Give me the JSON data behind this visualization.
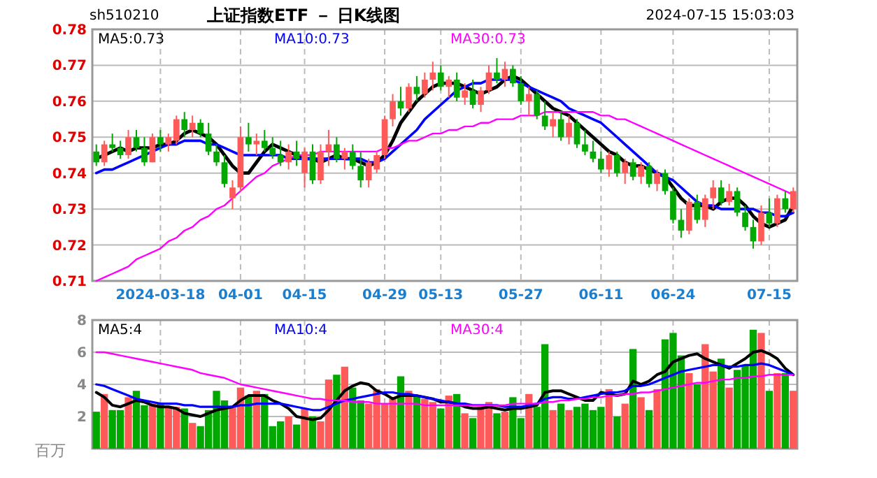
{
  "chart_data": [
    {
      "type": "candlestick",
      "title": "上证指数ETF － 日K线图",
      "subtitle": "sh510210",
      "annotations": [
        "2024-07-15 15:03:03"
      ],
      "categories": [
        null,
        null,
        null,
        null,
        null,
        null,
        null,
        null,
        "2024-03-18",
        null,
        null,
        null,
        null,
        null,
        null,
        null,
        null,
        null,
        "04-01",
        null,
        null,
        null,
        null,
        null,
        null,
        null,
        "04-15",
        null,
        null,
        null,
        null,
        null,
        null,
        null,
        null,
        null,
        "04-29",
        null,
        null,
        null,
        null,
        null,
        null,
        "05-13",
        null,
        null,
        null,
        null,
        null,
        null,
        null,
        null,
        null,
        "05-27",
        null,
        null,
        null,
        null,
        null,
        null,
        null,
        null,
        null,
        "06-11",
        null,
        null,
        null,
        null,
        null,
        null,
        null,
        null,
        "06-24",
        null,
        null,
        null,
        null,
        null,
        null,
        null,
        null,
        null,
        null,
        null,
        "07-15",
        null,
        null,
        null
      ],
      "ohlc": [
        [
          0.746,
          0.748,
          0.742,
          0.743
        ],
        [
          0.743,
          0.749,
          0.742,
          0.748
        ],
        [
          0.748,
          0.751,
          0.746,
          0.747
        ],
        [
          0.747,
          0.749,
          0.744,
          0.745
        ],
        [
          0.745,
          0.752,
          0.744,
          0.75
        ],
        [
          0.75,
          0.752,
          0.746,
          0.747
        ],
        [
          0.747,
          0.75,
          0.742,
          0.743
        ],
        [
          0.743,
          0.751,
          0.743,
          0.75
        ],
        [
          0.75,
          0.752,
          0.746,
          0.748
        ],
        [
          0.748,
          0.751,
          0.746,
          0.75
        ],
        [
          0.749,
          0.756,
          0.748,
          0.755
        ],
        [
          0.755,
          0.757,
          0.75,
          0.752
        ],
        [
          0.752,
          0.756,
          0.75,
          0.754
        ],
        [
          0.754,
          0.755,
          0.75,
          0.751
        ],
        [
          0.751,
          0.754,
          0.745,
          0.746
        ],
        [
          0.746,
          0.748,
          0.742,
          0.743
        ],
        [
          0.743,
          0.745,
          0.736,
          0.737
        ],
        [
          0.733,
          0.738,
          0.73,
          0.736
        ],
        [
          0.736,
          0.753,
          0.735,
          0.75
        ],
        [
          0.75,
          0.754,
          0.746,
          0.748
        ],
        [
          0.748,
          0.751,
          0.745,
          0.749
        ],
        [
          0.749,
          0.752,
          0.746,
          0.747
        ],
        [
          0.747,
          0.75,
          0.744,
          0.745
        ],
        [
          0.745,
          0.749,
          0.742,
          0.743
        ],
        [
          0.743,
          0.748,
          0.741,
          0.746
        ],
        [
          0.746,
          0.749,
          0.742,
          0.744
        ],
        [
          0.74,
          0.747,
          0.736,
          0.746
        ],
        [
          0.746,
          0.748,
          0.737,
          0.738
        ],
        [
          0.738,
          0.748,
          0.737,
          0.746
        ],
        [
          0.746,
          0.752,
          0.742,
          0.748
        ],
        [
          0.748,
          0.75,
          0.743,
          0.744
        ],
        [
          0.744,
          0.747,
          0.741,
          0.746
        ],
        [
          0.746,
          0.748,
          0.741,
          0.742
        ],
        [
          0.742,
          0.746,
          0.736,
          0.738
        ],
        [
          0.738,
          0.744,
          0.736,
          0.743
        ],
        [
          0.741,
          0.746,
          0.74,
          0.745
        ],
        [
          0.745,
          0.756,
          0.744,
          0.755
        ],
        [
          0.755,
          0.762,
          0.753,
          0.76
        ],
        [
          0.76,
          0.764,
          0.756,
          0.758
        ],
        [
          0.758,
          0.765,
          0.757,
          0.764
        ],
        [
          0.764,
          0.767,
          0.76,
          0.762
        ],
        [
          0.762,
          0.768,
          0.761,
          0.766
        ],
        [
          0.766,
          0.771,
          0.763,
          0.768
        ],
        [
          0.768,
          0.77,
          0.763,
          0.764
        ],
        [
          0.764,
          0.767,
          0.761,
          0.766
        ],
        [
          0.766,
          0.768,
          0.76,
          0.761
        ],
        [
          0.761,
          0.765,
          0.759,
          0.763
        ],
        [
          0.763,
          0.766,
          0.758,
          0.759
        ],
        [
          0.759,
          0.764,
          0.757,
          0.763
        ],
        [
          0.763,
          0.77,
          0.762,
          0.768
        ],
        [
          0.768,
          0.772,
          0.765,
          0.766
        ],
        [
          0.766,
          0.771,
          0.764,
          0.769
        ],
        [
          0.769,
          0.77,
          0.764,
          0.765
        ],
        [
          0.765,
          0.767,
          0.759,
          0.76
        ],
        [
          0.76,
          0.764,
          0.756,
          0.762
        ],
        [
          0.762,
          0.763,
          0.755,
          0.756
        ],
        [
          0.756,
          0.76,
          0.752,
          0.753
        ],
        [
          0.753,
          0.757,
          0.75,
          0.755
        ],
        [
          0.755,
          0.757,
          0.749,
          0.75
        ],
        [
          0.75,
          0.756,
          0.748,
          0.754
        ],
        [
          0.754,
          0.755,
          0.747,
          0.748
        ],
        [
          0.748,
          0.752,
          0.745,
          0.746
        ],
        [
          0.746,
          0.749,
          0.743,
          0.744
        ],
        [
          0.744,
          0.746,
          0.74,
          0.741
        ],
        [
          0.741,
          0.746,
          0.739,
          0.745
        ],
        [
          0.745,
          0.746,
          0.739,
          0.74
        ],
        [
          0.74,
          0.744,
          0.737,
          0.743
        ],
        [
          0.743,
          0.744,
          0.738,
          0.739
        ],
        [
          0.739,
          0.743,
          0.737,
          0.742
        ],
        [
          0.742,
          0.743,
          0.736,
          0.737
        ],
        [
          0.737,
          0.741,
          0.735,
          0.74
        ],
        [
          0.74,
          0.741,
          0.734,
          0.735
        ],
        [
          0.735,
          0.736,
          0.726,
          0.727
        ],
        [
          0.727,
          0.73,
          0.722,
          0.724
        ],
        [
          0.724,
          0.733,
          0.723,
          0.732
        ],
        [
          0.732,
          0.734,
          0.726,
          0.727
        ],
        [
          0.727,
          0.734,
          0.725,
          0.733
        ],
        [
          0.733,
          0.738,
          0.73,
          0.736
        ],
        [
          0.736,
          0.738,
          0.731,
          0.732
        ],
        [
          0.732,
          0.737,
          0.731,
          0.735
        ],
        [
          0.735,
          0.736,
          0.728,
          0.729
        ],
        [
          0.729,
          0.731,
          0.724,
          0.725
        ],
        [
          0.725,
          0.727,
          0.719,
          0.721
        ],
        [
          0.721,
          0.731,
          0.72,
          0.729
        ],
        [
          0.729,
          0.733,
          0.725,
          0.726
        ],
        [
          0.726,
          0.734,
          0.725,
          0.733
        ],
        [
          0.733,
          0.735,
          0.729,
          0.73
        ],
        [
          0.73,
          0.736,
          0.729,
          0.735
        ]
      ],
      "colors": [
        "#00a800",
        "#ff5a5a",
        "#00a800",
        "#00a800",
        "#ff5a5a",
        "#00a800",
        "#00a800",
        "#ff5a5a",
        "#00a800",
        "#ff5a5a",
        "#ff5a5a",
        "#00a800",
        "#ff5a5a",
        "#00a800",
        "#00a800",
        "#00a800",
        "#00a800",
        "#ff5a5a",
        "#ff5a5a",
        "#00a800",
        "#ff5a5a",
        "#00a800",
        "#00a800",
        "#00a800",
        "#ff5a5a",
        "#00a800",
        "#ff5a5a",
        "#00a800",
        "#ff5a5a",
        "#ff5a5a",
        "#00a800",
        "#ff5a5a",
        "#00a800",
        "#00a800",
        "#ff5a5a",
        "#ff5a5a",
        "#ff5a5a",
        "#ff5a5a",
        "#00a800",
        "#ff5a5a",
        "#00a800",
        "#ff5a5a",
        "#ff5a5a",
        "#00a800",
        "#ff5a5a",
        "#00a800",
        "#ff5a5a",
        "#00a800",
        "#ff5a5a",
        "#ff5a5a",
        "#00a800",
        "#ff5a5a",
        "#00a800",
        "#00a800",
        "#ff5a5a",
        "#00a800",
        "#00a800",
        "#ff5a5a",
        "#00a800",
        "#ff5a5a",
        "#00a800",
        "#00a800",
        "#00a800",
        "#00a800",
        "#ff5a5a",
        "#00a800",
        "#ff5a5a",
        "#00a800",
        "#ff5a5a",
        "#00a800",
        "#ff5a5a",
        "#00a800",
        "#00a800",
        "#00a800",
        "#ff5a5a",
        "#00a800",
        "#ff5a5a",
        "#ff5a5a",
        "#00a800",
        "#ff5a5a",
        "#00a800",
        "#00a800",
        "#00a800",
        "#ff5a5a",
        "#00a800",
        "#ff5a5a",
        "#00a800",
        "#ff5a5a"
      ],
      "series": [
        {
          "type": "line",
          "name": "MA5:0.73",
          "color": "#000000",
          "values": [
            0.744,
            0.745,
            0.746,
            0.747,
            0.746,
            0.747,
            0.747,
            0.747,
            0.748,
            0.748,
            0.749,
            0.751,
            0.752,
            0.751,
            0.75,
            0.748,
            0.745,
            0.742,
            0.74,
            0.74,
            0.743,
            0.746,
            0.748,
            0.747,
            0.746,
            0.745,
            0.744,
            0.744,
            0.743,
            0.744,
            0.745,
            0.744,
            0.744,
            0.743,
            0.742,
            0.743,
            0.745,
            0.749,
            0.754,
            0.757,
            0.76,
            0.762,
            0.764,
            0.765,
            0.765,
            0.765,
            0.764,
            0.763,
            0.762,
            0.763,
            0.764,
            0.766,
            0.767,
            0.766,
            0.764,
            0.762,
            0.76,
            0.758,
            0.757,
            0.756,
            0.754,
            0.752,
            0.75,
            0.748,
            0.746,
            0.745,
            0.743,
            0.742,
            0.742,
            0.741,
            0.74,
            0.739,
            0.736,
            0.733,
            0.731,
            0.731,
            0.731,
            0.73,
            0.732,
            0.733,
            0.733,
            0.731,
            0.728,
            0.726,
            0.725,
            0.726,
            0.727,
            0.731
          ]
        },
        {
          "type": "line",
          "name": "MA10:0.73",
          "color": "#0000ff",
          "values": [
            0.74,
            0.741,
            0.741,
            0.742,
            0.743,
            0.744,
            0.745,
            0.746,
            0.747,
            0.748,
            0.748,
            0.749,
            0.749,
            0.749,
            0.748,
            0.748,
            0.747,
            0.746,
            0.745,
            0.745,
            0.745,
            0.745,
            0.745,
            0.745,
            0.744,
            0.744,
            0.744,
            0.744,
            0.744,
            0.744,
            0.744,
            0.744,
            0.744,
            0.744,
            0.743,
            0.743,
            0.744,
            0.746,
            0.748,
            0.75,
            0.752,
            0.755,
            0.757,
            0.759,
            0.761,
            0.763,
            0.764,
            0.765,
            0.765,
            0.766,
            0.766,
            0.766,
            0.766,
            0.765,
            0.764,
            0.763,
            0.762,
            0.761,
            0.76,
            0.758,
            0.757,
            0.756,
            0.755,
            0.754,
            0.752,
            0.75,
            0.748,
            0.746,
            0.744,
            0.742,
            0.74,
            0.739,
            0.738,
            0.736,
            0.734,
            0.732,
            0.731,
            0.731,
            0.73,
            0.73,
            0.73,
            0.73,
            0.73,
            0.729,
            0.729,
            0.728,
            0.728,
            0.729
          ]
        },
        {
          "type": "line",
          "name": "MA30:0.73",
          "color": "#ff00ff",
          "values": [
            0.71,
            0.711,
            0.712,
            0.713,
            0.714,
            0.716,
            0.717,
            0.718,
            0.719,
            0.721,
            0.722,
            0.724,
            0.725,
            0.727,
            0.728,
            0.73,
            0.731,
            0.733,
            0.735,
            0.737,
            0.739,
            0.74,
            0.742,
            0.743,
            0.744,
            0.745,
            0.745,
            0.745,
            0.746,
            0.746,
            0.746,
            0.746,
            0.746,
            0.746,
            0.746,
            0.746,
            0.747,
            0.747,
            0.748,
            0.749,
            0.749,
            0.75,
            0.751,
            0.751,
            0.752,
            0.752,
            0.753,
            0.753,
            0.754,
            0.754,
            0.755,
            0.755,
            0.755,
            0.756,
            0.756,
            0.756,
            0.757,
            0.757,
            0.757,
            0.757,
            0.757,
            0.757,
            0.757,
            0.756,
            0.756,
            0.755,
            0.755,
            0.754,
            0.753,
            0.752,
            0.751,
            0.75,
            0.749,
            0.748,
            0.747,
            0.746,
            0.745,
            0.744,
            0.743,
            0.742,
            0.741,
            0.74,
            0.739,
            0.738,
            0.737,
            0.736,
            0.735,
            0.734
          ]
        }
      ],
      "ylim": [
        0.71,
        0.78
      ],
      "yticks": [
        0.71,
        0.72,
        0.73,
        0.74,
        0.75,
        0.76,
        0.77,
        0.78
      ],
      "grid": true,
      "legend": "top"
    },
    {
      "type": "bar",
      "ylabel": "百万",
      "tick_labels": "y",
      "categories": [
        null,
        null,
        null,
        null,
        null,
        null,
        null,
        null,
        null,
        null,
        null,
        null,
        null,
        null,
        null,
        null,
        null,
        null,
        null,
        null,
        null,
        null,
        null,
        null,
        null,
        null,
        null,
        null,
        null,
        null,
        null,
        null,
        null,
        null,
        null,
        null,
        null,
        null,
        null,
        null,
        null,
        null,
        null,
        null,
        null,
        null,
        null,
        null,
        null,
        null,
        null,
        null,
        null,
        null,
        null,
        null,
        null,
        null,
        null,
        null,
        null,
        null,
        null,
        null,
        null,
        null,
        null,
        null,
        null,
        null,
        null,
        null,
        null,
        null,
        null,
        null,
        null,
        null,
        null,
        null,
        null,
        null,
        null,
        null,
        null,
        null,
        null,
        null
      ],
      "series": [
        {
          "type": "bar",
          "colors": [
            "#00a800",
            "#ff5a5a",
            "#00a800",
            "#00a800",
            "#ff5a5a",
            "#00a800",
            "#00a800",
            "#ff5a5a",
            "#00a800",
            "#ff5a5a",
            "#ff5a5a",
            "#00a800",
            "#ff5a5a",
            "#00a800",
            "#00a800",
            "#00a800",
            "#00a800",
            "#ff5a5a",
            "#ff5a5a",
            "#00a800",
            "#ff5a5a",
            "#00a800",
            "#00a800",
            "#00a800",
            "#ff5a5a",
            "#00a800",
            "#ff5a5a",
            "#00a800",
            "#ff5a5a",
            "#ff5a5a",
            "#00a800",
            "#ff5a5a",
            "#00a800",
            "#00a800",
            "#ff5a5a",
            "#ff5a5a",
            "#ff5a5a",
            "#ff5a5a",
            "#00a800",
            "#ff5a5a",
            "#00a800",
            "#ff5a5a",
            "#ff5a5a",
            "#00a800",
            "#ff5a5a",
            "#00a800",
            "#ff5a5a",
            "#00a800",
            "#ff5a5a",
            "#ff5a5a",
            "#00a800",
            "#ff5a5a",
            "#00a800",
            "#00a800",
            "#ff5a5a",
            "#00a800",
            "#00a800",
            "#ff5a5a",
            "#00a800",
            "#ff5a5a",
            "#00a800",
            "#00a800",
            "#00a800",
            "#00a800",
            "#ff5a5a",
            "#00a800",
            "#ff5a5a",
            "#00a800",
            "#ff5a5a",
            "#00a800",
            "#ff5a5a",
            "#00a800",
            "#00a800",
            "#00a800",
            "#ff5a5a",
            "#00a800",
            "#ff5a5a",
            "#ff5a5a",
            "#00a800",
            "#ff5a5a",
            "#00a800",
            "#00a800",
            "#00a800",
            "#ff5a5a",
            "#00a800",
            "#ff5a5a",
            "#00a800",
            "#ff5a5a"
          ],
          "values": [
            2.3,
            3.4,
            2.4,
            2.4,
            3.2,
            3.6,
            2.7,
            2.8,
            2.8,
            2.6,
            2.6,
            2.5,
            1.6,
            1.4,
            2.4,
            3.6,
            3.0,
            2.6,
            3.8,
            3.3,
            3.6,
            3.4,
            1.4,
            1.7,
            2.0,
            1.5,
            2.5,
            2.0,
            1.7,
            4.3,
            4.6,
            5.1,
            3.8,
            3.0,
            2.8,
            3.7,
            2.8,
            3.1,
            4.5,
            3.6,
            3.3,
            3.1,
            2.9,
            2.5,
            3.3,
            3.4,
            2.2,
            1.9,
            2.6,
            2.9,
            2.2,
            2.3,
            3.2,
            1.9,
            3.4,
            2.6,
            6.5,
            2.4,
            2.8,
            2.4,
            2.6,
            2.8,
            2.4,
            2.6,
            3.7,
            2.0,
            2.8,
            6.2,
            3.2,
            2.4,
            3.7,
            6.8,
            7.2,
            5.8,
            4.7,
            4.0,
            6.5,
            4.8,
            5.6,
            3.8,
            4.9,
            5.2,
            7.4,
            7.2,
            3.6,
            4.7,
            4.7,
            3.6
          ]
        },
        {
          "type": "line",
          "name": "MA5:4",
          "color": "#000000",
          "values": [
            3.5,
            3.2,
            2.7,
            2.6,
            2.8,
            3.0,
            2.9,
            2.7,
            2.6,
            2.6,
            2.5,
            2.2,
            2.1,
            2.0,
            2.2,
            2.4,
            2.5,
            2.6,
            3.0,
            3.3,
            3.3,
            3.3,
            3.0,
            2.8,
            2.5,
            2.0,
            1.9,
            1.8,
            1.9,
            2.4,
            3.0,
            3.6,
            3.9,
            4.1,
            4.0,
            3.6,
            3.4,
            3.1,
            3.3,
            3.3,
            3.3,
            3.2,
            3.1,
            2.9,
            2.9,
            2.8,
            2.6,
            2.5,
            2.5,
            2.6,
            2.5,
            2.4,
            2.5,
            2.5,
            2.6,
            2.7,
            3.5,
            3.6,
            3.6,
            3.4,
            3.2,
            3.0,
            3.0,
            3.5,
            3.4,
            3.3,
            3.4,
            4.2,
            4.0,
            4.2,
            4.6,
            4.8,
            5.4,
            5.6,
            5.8,
            5.9,
            5.6,
            5.4,
            5.2,
            5.0,
            5.3,
            5.6,
            6.0,
            6.1,
            5.9,
            5.6,
            5.0,
            4.6
          ]
        },
        {
          "type": "line",
          "name": "MA10:4",
          "color": "#0000ff",
          "values": [
            4.0,
            3.9,
            3.7,
            3.5,
            3.3,
            3.1,
            3.0,
            2.9,
            2.8,
            2.8,
            2.8,
            2.7,
            2.7,
            2.6,
            2.6,
            2.6,
            2.6,
            2.6,
            2.7,
            2.7,
            2.8,
            2.8,
            2.8,
            2.8,
            2.7,
            2.6,
            2.5,
            2.4,
            2.4,
            2.6,
            2.8,
            3.0,
            3.1,
            3.2,
            3.3,
            3.4,
            3.5,
            3.5,
            3.4,
            3.4,
            3.3,
            3.2,
            3.1,
            3.0,
            2.9,
            2.8,
            2.8,
            2.7,
            2.7,
            2.7,
            2.7,
            2.6,
            2.6,
            2.6,
            2.7,
            2.8,
            3.1,
            3.2,
            3.2,
            3.1,
            3.1,
            3.2,
            3.3,
            3.4,
            3.5,
            3.5,
            3.6,
            3.9,
            3.9,
            4.0,
            4.2,
            4.4,
            4.6,
            4.8,
            4.9,
            5.0,
            5.1,
            5.2,
            5.2,
            5.1,
            5.1,
            5.2,
            5.2,
            5.3,
            5.2,
            5.0,
            4.8,
            4.6
          ]
        },
        {
          "type": "line",
          "name": "MA30:4",
          "color": "#ff00ff",
          "values": [
            6.0,
            6.0,
            5.9,
            5.8,
            5.7,
            5.6,
            5.5,
            5.4,
            5.3,
            5.2,
            5.1,
            5.0,
            4.9,
            4.7,
            4.6,
            4.5,
            4.4,
            4.2,
            4.0,
            3.9,
            3.8,
            3.7,
            3.6,
            3.5,
            3.4,
            3.3,
            3.2,
            3.1,
            3.1,
            3.0,
            3.0,
            3.0,
            2.9,
            2.9,
            2.9,
            2.8,
            2.8,
            2.8,
            2.8,
            2.8,
            2.8,
            2.7,
            2.7,
            2.7,
            2.7,
            2.7,
            2.7,
            2.7,
            2.7,
            2.7,
            2.7,
            2.7,
            2.8,
            2.8,
            2.8,
            2.8,
            2.9,
            2.9,
            3.0,
            3.0,
            3.1,
            3.1,
            3.2,
            3.2,
            3.3,
            3.3,
            3.4,
            3.4,
            3.5,
            3.5,
            3.6,
            3.7,
            3.8,
            3.9,
            4.0,
            4.1,
            4.1,
            4.2,
            4.3,
            4.3,
            4.4,
            4.4,
            4.5,
            4.5,
            4.6,
            4.6,
            4.6,
            4.6
          ]
        }
      ],
      "ylim": [
        0,
        8
      ],
      "yticks": [
        2,
        4,
        6,
        8
      ],
      "grid": true,
      "legend": "top"
    }
  ]
}
